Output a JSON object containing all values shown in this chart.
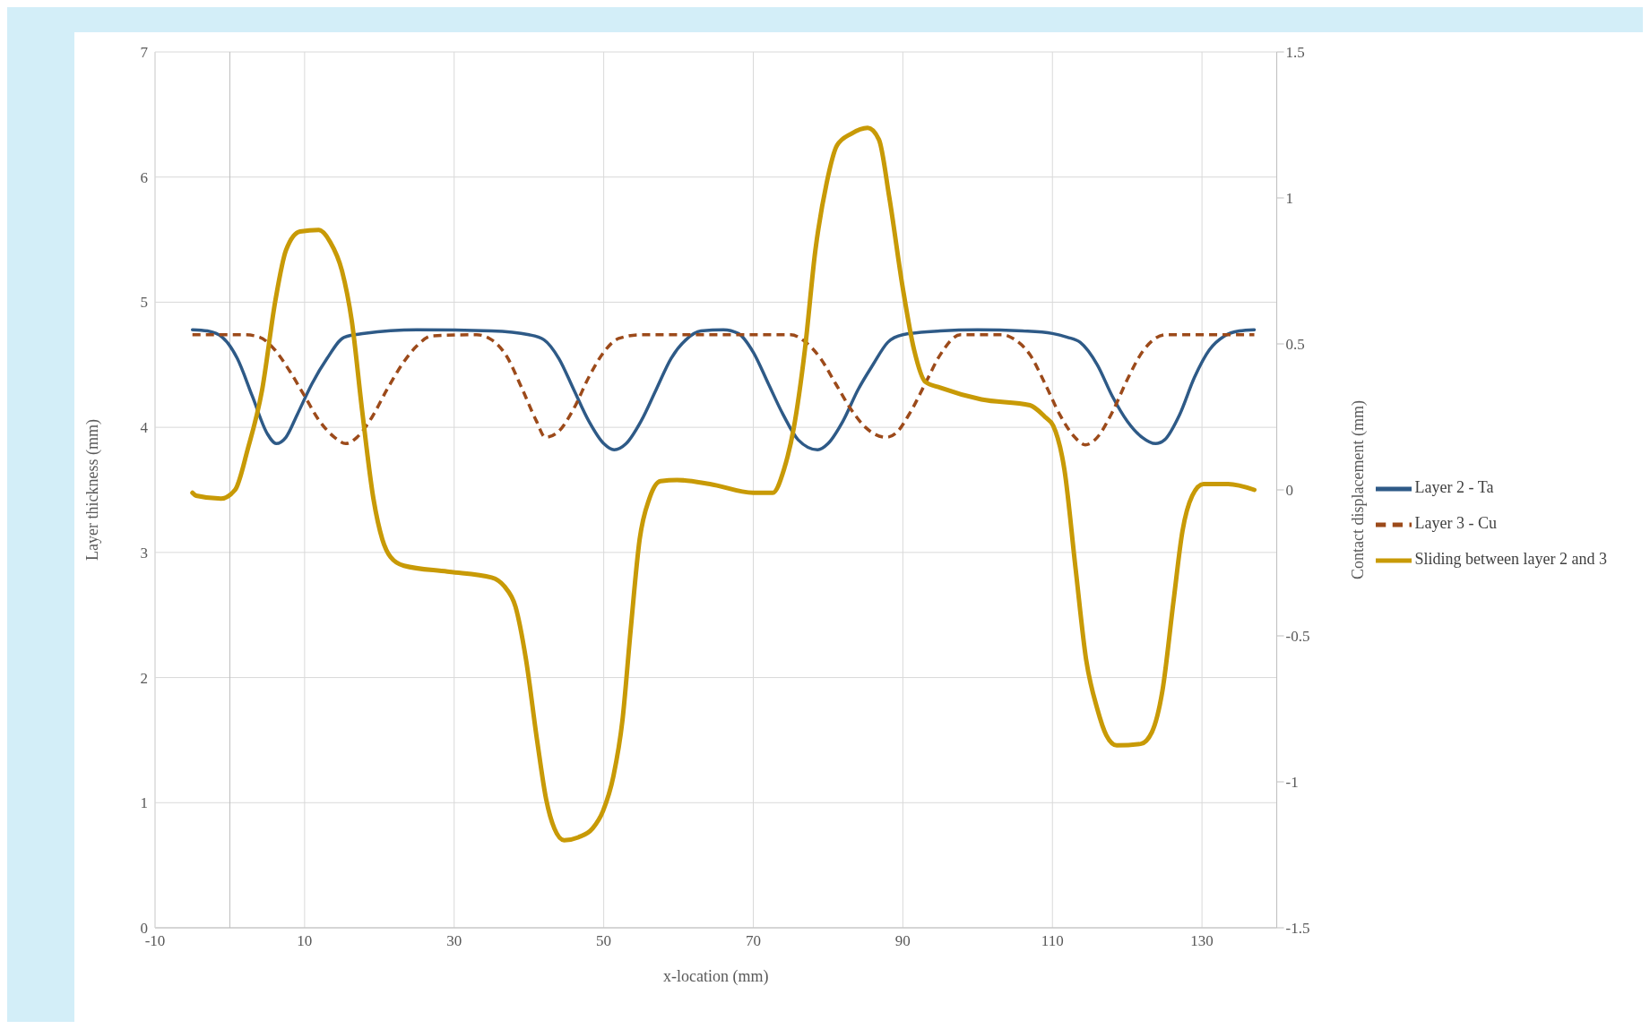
{
  "chart_data": {
    "type": "line",
    "xlabel": "x-location  (mm)",
    "ylabel": "Layer thickness  (mm)",
    "y2label": "Contact displacement  (mm)",
    "xlim": [
      -10,
      140
    ],
    "xticks": [
      -10,
      10,
      30,
      50,
      70,
      90,
      110,
      130
    ],
    "ylim": [
      0,
      7
    ],
    "yticks": [
      0,
      1,
      2,
      3,
      4,
      5,
      6,
      7
    ],
    "y2lim": [
      -1.5,
      1.5
    ],
    "y2ticks": [
      -1.5,
      -1,
      -0.5,
      0,
      0.5,
      1,
      1.5
    ],
    "grid": true,
    "legend": "right",
    "marker": "none",
    "ref_lines": [
      {
        "axis": "x",
        "value": 0,
        "color": "#bfbfbf"
      }
    ],
    "series": [
      {
        "name": "Layer 2 - Ta",
        "color": "#2e5a87",
        "line_style": "solid",
        "x": [
          -5,
          -3,
          -1,
          1,
          3,
          5,
          6.2,
          7.5,
          9,
          11,
          13,
          15.3,
          18,
          25,
          35,
          40,
          42,
          44,
          46,
          48,
          50,
          51.4,
          53,
          55,
          57,
          59,
          61,
          63,
          66,
          68,
          70,
          72,
          74,
          76,
          78.6,
          80,
          82,
          84,
          86,
          88,
          90,
          95,
          100,
          106,
          110,
          112,
          113.7,
          116,
          118,
          120,
          122,
          123.8,
          125,
          127,
          129,
          131,
          133,
          135,
          137
        ],
        "values": [
          4.78,
          4.77,
          4.72,
          4.55,
          4.25,
          3.95,
          3.87,
          3.92,
          4.1,
          4.35,
          4.55,
          4.72,
          4.75,
          4.78,
          4.77,
          4.74,
          4.7,
          4.55,
          4.3,
          4.05,
          3.87,
          3.82,
          3.87,
          4.05,
          4.3,
          4.55,
          4.7,
          4.77,
          4.78,
          4.75,
          4.6,
          4.35,
          4.1,
          3.9,
          3.82,
          3.87,
          4.05,
          4.3,
          4.5,
          4.68,
          4.74,
          4.77,
          4.78,
          4.77,
          4.75,
          4.72,
          4.68,
          4.5,
          4.25,
          4.05,
          3.92,
          3.87,
          3.9,
          4.1,
          4.4,
          4.62,
          4.73,
          4.77,
          4.78
        ]
      },
      {
        "name": "Layer 3 - Cu",
        "color": "#9c4a1a",
        "line_style": "dashed",
        "x": [
          -5,
          2,
          4,
          6,
          8,
          10,
          12,
          14,
          15.5,
          17,
          19,
          21,
          23,
          25,
          27,
          33,
          35,
          37,
          39,
          41,
          42.2,
          44,
          46,
          48,
          50,
          52,
          55,
          75,
          77,
          79,
          81,
          83,
          85,
          87.8,
          89,
          91,
          93,
          95,
          97.7,
          103.3,
          105,
          107,
          109,
          111,
          113,
          114.4,
          116,
          118,
          120,
          122,
          125.2,
          137
        ],
        "values": [
          4.74,
          4.74,
          4.72,
          4.62,
          4.45,
          4.25,
          4.05,
          3.92,
          3.87,
          3.92,
          4.08,
          4.3,
          4.5,
          4.65,
          4.73,
          4.74,
          4.7,
          4.57,
          4.32,
          4.05,
          3.92,
          3.97,
          4.15,
          4.4,
          4.6,
          4.71,
          4.74,
          4.74,
          4.68,
          4.55,
          4.35,
          4.15,
          4.0,
          3.92,
          3.95,
          4.12,
          4.35,
          4.58,
          4.74,
          4.74,
          4.7,
          4.58,
          4.35,
          4.1,
          3.92,
          3.86,
          3.92,
          4.12,
          4.38,
          4.6,
          4.74,
          4.74
        ]
      },
      {
        "name": "Sliding between layer 2 and 3",
        "color": "#c89a06",
        "line_style": "solid",
        "axis": "y2",
        "x": [
          -5,
          -4.5,
          -1.2,
          0.7,
          2.4,
          4.3,
          6.1,
          7.5,
          9.4,
          11.9,
          13.4,
          15,
          16.3,
          17.7,
          19.2,
          20.4,
          21.5,
          23.3,
          29.1,
          35,
          36.7,
          38.2,
          39.6,
          41.1,
          42.3,
          43.4,
          44.7,
          46.6,
          48.5,
          49.9,
          51.3,
          52.5,
          53.6,
          54.8,
          56.1,
          57.6,
          59.8,
          64.2,
          70,
          72.6,
          74.1,
          75.4,
          76.9,
          78.3,
          79.8,
          81.2,
          83.1,
          85.3,
          86.8,
          88.2,
          90,
          91.5,
          93,
          95,
          100.5,
          107,
          109,
          110.1,
          111.6,
          113.1,
          114.5,
          116,
          117.2,
          118.6,
          121.8,
          123.3,
          124.7,
          126.2,
          127.4,
          128.7,
          130.2,
          133.5,
          137
        ],
        "values": [
          -0.01,
          -0.02,
          -0.03,
          0,
          0.14,
          0.34,
          0.65,
          0.82,
          0.885,
          0.89,
          0.85,
          0.75,
          0.58,
          0.27,
          -0.03,
          -0.17,
          -0.23,
          -0.26,
          -0.28,
          -0.3,
          -0.33,
          -0.4,
          -0.58,
          -0.86,
          -1.06,
          -1.16,
          -1.2,
          -1.19,
          -1.16,
          -1.1,
          -0.98,
          -0.79,
          -0.48,
          -0.17,
          -0.03,
          0.03,
          0.034,
          0.02,
          -0.01,
          -0.01,
          0.07,
          0.21,
          0.48,
          0.82,
          1.05,
          1.18,
          1.22,
          1.24,
          1.2,
          1.0,
          0.69,
          0.48,
          0.37,
          0.35,
          0.31,
          0.29,
          0.25,
          0.22,
          0.07,
          -0.27,
          -0.58,
          -0.75,
          -0.84,
          -0.875,
          -0.87,
          -0.83,
          -0.69,
          -0.38,
          -0.14,
          -0.02,
          0.02,
          0.02,
          0.0
        ]
      }
    ]
  }
}
